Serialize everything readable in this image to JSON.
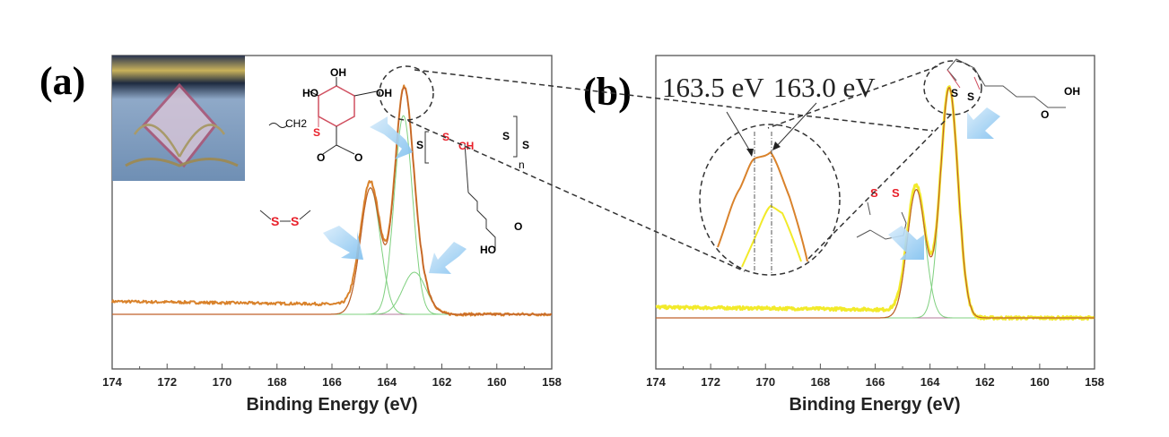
{
  "colors": {
    "experimental_a": "#d9822b",
    "experimental_b": "#f2ea2a",
    "envelope": "#c0602a",
    "component": "#7fd07f",
    "baseline": "#b07a9a",
    "arrow": "#8cc8f2",
    "highlight_s": "#e8202a"
  },
  "chart_data": [
    {
      "type": "line",
      "panel_label": "(a)",
      "xlabel": "Binding Energy (eV)",
      "ylabel": "",
      "xlim": [
        174,
        158
      ],
      "x_reversed": true,
      "xticks": [
        174,
        172,
        170,
        168,
        166,
        164,
        162,
        160,
        158
      ],
      "y_unit": "relative intensity (unlabeled)",
      "components": [
        {
          "center": 164.6,
          "amplitude": 0.54,
          "sigma": 0.36
        },
        {
          "center": 163.4,
          "amplitude": 0.85,
          "sigma": 0.33
        },
        {
          "center": 163.0,
          "amplitude": 0.18,
          "sigma": 0.42
        }
      ],
      "background_high_be": 0.055,
      "series": [
        {
          "role": "experimental",
          "color": "#d9822b"
        },
        {
          "role": "fit-envelope",
          "color": "#c0602a"
        },
        {
          "role": "components",
          "color": "#7fd07f"
        },
        {
          "role": "baseline",
          "color": "#b07a9a"
        }
      ],
      "annotations": {
        "structure_labels": [
          "OH",
          "HO",
          "OH",
          "CH2",
          "S",
          "O",
          "O",
          "S",
          "S",
          "CH",
          "S",
          "S",
          "n",
          "O",
          "HO"
        ],
        "disulfide_labels": [
          "S",
          "S"
        ]
      }
    },
    {
      "type": "line",
      "panel_label": "(b)",
      "xlabel": "Binding Energy (eV)",
      "ylabel": "",
      "xlim": [
        174,
        158
      ],
      "x_reversed": true,
      "xticks": [
        174,
        172,
        170,
        168,
        166,
        164,
        162,
        160,
        158
      ],
      "components": [
        {
          "center": 164.5,
          "amplitude": 0.54,
          "sigma": 0.33
        },
        {
          "center": 163.3,
          "amplitude": 0.97,
          "sigma": 0.32
        }
      ],
      "background_high_be": 0.045,
      "series": [
        {
          "role": "experimental",
          "color": "#f2ea2a"
        },
        {
          "role": "fit-envelope",
          "color": "#c0602a"
        },
        {
          "role": "components",
          "color": "#7fd07f"
        },
        {
          "role": "baseline",
          "color": "#b07a9a"
        }
      ],
      "annotations": {
        "inset_peak_labels": [
          "163.5 eV",
          "163.0 eV"
        ],
        "lipoic_labels": [
          "S",
          "S",
          "OH",
          "O"
        ],
        "ring_labels": [
          "S",
          "S"
        ]
      }
    }
  ]
}
